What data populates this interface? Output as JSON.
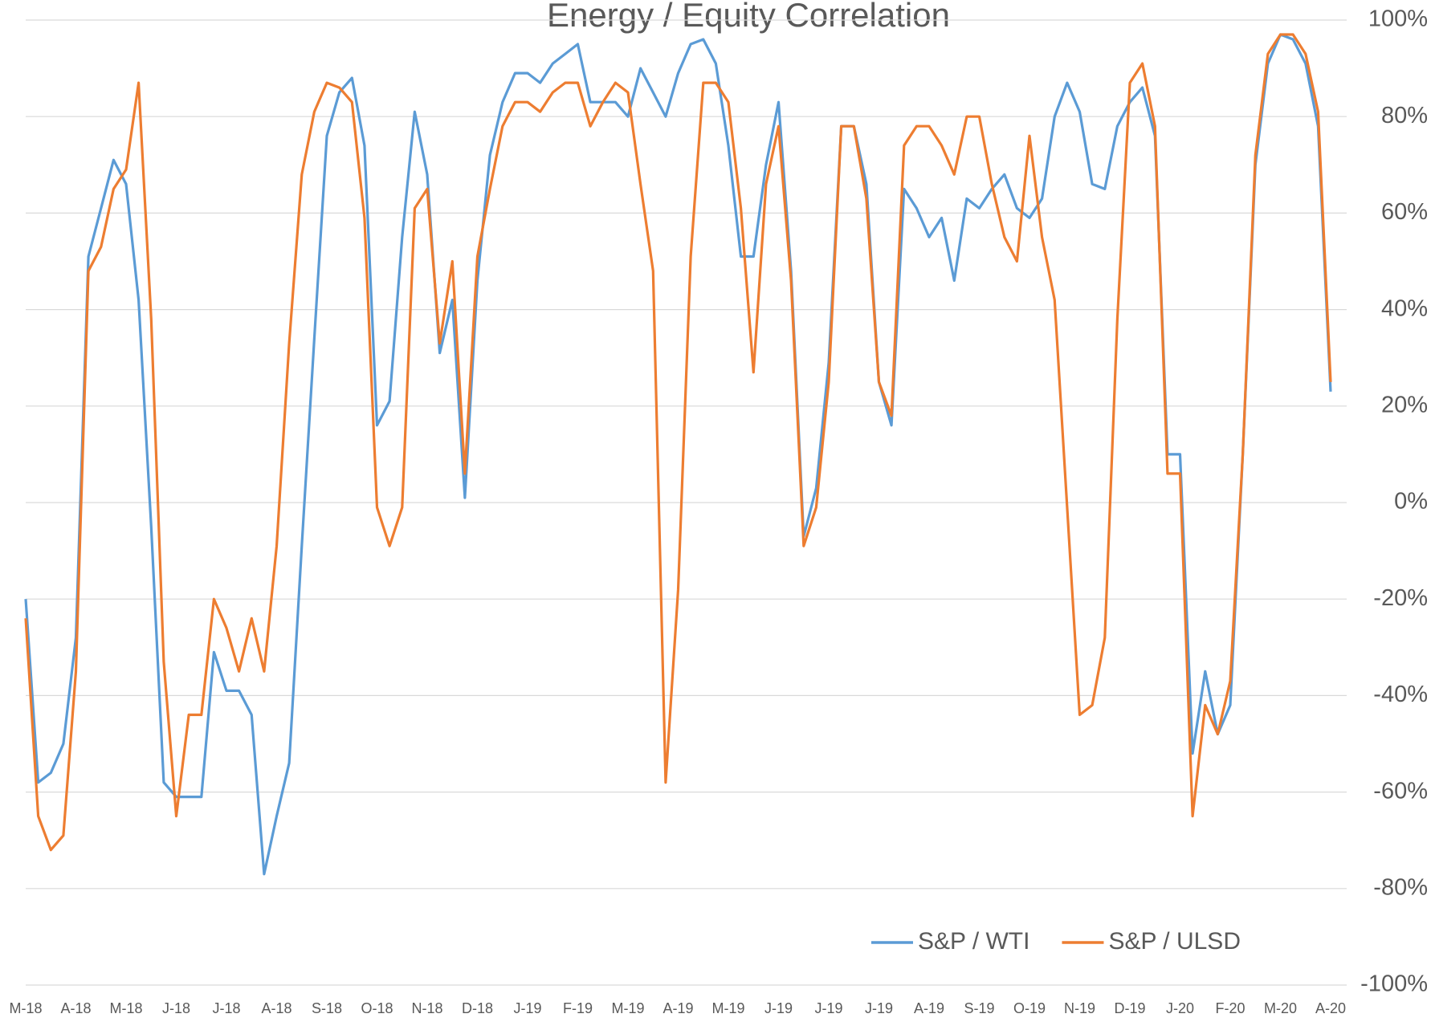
{
  "chart_data": {
    "type": "line",
    "title": "Energy / Equity Correlation",
    "categories": [
      "M-18",
      null,
      null,
      null,
      "A-18",
      null,
      null,
      null,
      "M-18",
      null,
      null,
      null,
      "J-18",
      null,
      null,
      null,
      "J-18",
      null,
      null,
      null,
      "A-18",
      null,
      null,
      null,
      "S-18",
      null,
      null,
      null,
      "O-18",
      null,
      null,
      null,
      "N-18",
      null,
      null,
      null,
      "D-18",
      null,
      null,
      null,
      "J-19",
      null,
      null,
      null,
      "F-19",
      null,
      null,
      null,
      "M-19",
      null,
      null,
      null,
      "A-19",
      null,
      null,
      null,
      "M-19",
      null,
      null,
      null,
      "J-19",
      null,
      null,
      null,
      "J-19",
      null,
      null,
      null,
      "J-19",
      null,
      null,
      null,
      "A-19",
      null,
      null,
      null,
      "S-19",
      null,
      null,
      null,
      "O-19",
      null,
      null,
      null,
      "N-19",
      null,
      null,
      null,
      "D-19",
      null,
      null,
      null,
      "J-20",
      null,
      null,
      null,
      "F-20",
      null,
      null,
      null,
      "M-20",
      null,
      null,
      null,
      "A-20"
    ],
    "series": [
      {
        "name": "S&P / WTI",
        "color": "#5b9bd5",
        "values": [
          -20,
          -58,
          -56,
          -50,
          -28,
          51,
          61,
          71,
          66,
          42,
          -5,
          -58,
          -61,
          -61,
          -61,
          -31,
          -39,
          -39,
          -44,
          -77,
          -65,
          -54,
          -9,
          34,
          76,
          85,
          88,
          74,
          16,
          21,
          55,
          81,
          68,
          31,
          42,
          1,
          46,
          72,
          83,
          89,
          89,
          87,
          91,
          93,
          95,
          83,
          83,
          83,
          80,
          90,
          85,
          80,
          89,
          95,
          96,
          91,
          74,
          51,
          51,
          70,
          83,
          48,
          -7,
          3,
          29,
          78,
          78,
          66,
          25,
          16,
          65,
          61,
          55,
          59,
          46,
          63,
          61,
          65,
          68,
          61,
          59,
          63,
          80,
          87,
          81,
          66,
          65,
          78,
          83,
          86,
          76,
          10,
          10,
          -52,
          -35,
          -48,
          -42,
          10,
          70,
          91,
          97,
          96,
          91,
          78,
          23
        ]
      },
      {
        "name": "S&P / ULSD",
        "color": "#ed7d31",
        "values": [
          -24,
          -65,
          -72,
          -69,
          -35,
          48,
          53,
          65,
          69,
          87,
          38,
          -33,
          -65,
          -44,
          -44,
          -20,
          -26,
          -35,
          -24,
          -35,
          -9,
          33,
          68,
          81,
          87,
          86,
          83,
          59,
          -1,
          -9,
          -1,
          61,
          65,
          33,
          50,
          6,
          51,
          65,
          78,
          83,
          83,
          81,
          85,
          87,
          87,
          78,
          83,
          87,
          85,
          66,
          48,
          -58,
          -18,
          51,
          87,
          87,
          83,
          61,
          27,
          66,
          78,
          46,
          -9,
          -1,
          25,
          78,
          78,
          63,
          25,
          18,
          74,
          78,
          78,
          74,
          68,
          80,
          80,
          66,
          55,
          50,
          76,
          55,
          42,
          -1,
          -44,
          -42,
          -28,
          38,
          87,
          91,
          78,
          6,
          6,
          -65,
          -42,
          -48,
          -37,
          10,
          72,
          93,
          97,
          97,
          93,
          81,
          25
        ]
      }
    ],
    "ylim": [
      -100,
      100
    ],
    "yticks": [
      {
        "value": -100,
        "label": "-100%"
      },
      {
        "value": -80,
        "label": "-80%"
      },
      {
        "value": -60,
        "label": "-60%"
      },
      {
        "value": -40,
        "label": "-40%"
      },
      {
        "value": -20,
        "label": "-20%"
      },
      {
        "value": 0,
        "label": "0%"
      },
      {
        "value": 20,
        "label": "20%"
      },
      {
        "value": 40,
        "label": "40%"
      },
      {
        "value": 60,
        "label": "60%"
      },
      {
        "value": 80,
        "label": "80%"
      },
      {
        "value": 100,
        "label": "100%"
      }
    ],
    "grid": true,
    "legend": "bottom-right"
  }
}
